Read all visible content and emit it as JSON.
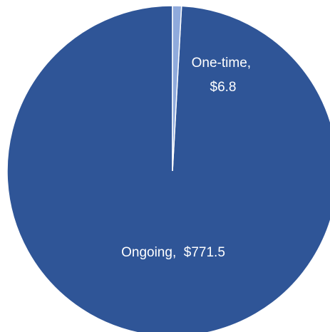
{
  "chart_data": {
    "type": "pie",
    "title": "",
    "slices": [
      {
        "category": "Ongoing",
        "separator": ",  ",
        "value_label": "$771.5",
        "value": 771.5,
        "color": "#2F5597"
      },
      {
        "category": "One-time",
        "separator": ",",
        "value_label": "$6.8",
        "value": 6.8,
        "color": "#8FAADC"
      }
    ],
    "legend": "none",
    "start_angle_deg": 0,
    "direction": "counterclockwise"
  }
}
